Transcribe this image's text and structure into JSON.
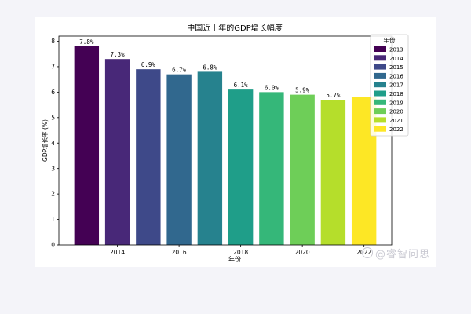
{
  "watermark": "@睿智问思",
  "chart_data": {
    "type": "bar",
    "title": "中国近十年的GDP增长幅度",
    "xlabel": "年份",
    "ylabel": "GDP增长率 (%)",
    "x": [
      2013,
      2014,
      2015,
      2016,
      2017,
      2018,
      2019,
      2020,
      2021,
      2022
    ],
    "values": [
      7.8,
      7.3,
      6.9,
      6.7,
      6.8,
      6.1,
      6.0,
      5.9,
      5.7,
      5.8
    ],
    "data_labels": [
      "7.8%",
      "7.3%",
      "6.9%",
      "6.7%",
      "6.8%",
      "6.1%",
      "6.0%",
      "5.9%",
      "5.7%",
      ""
    ],
    "xticks": [
      2014,
      2016,
      2018,
      2020,
      2022
    ],
    "yticks": [
      0,
      1,
      2,
      3,
      4,
      5,
      6,
      7,
      8
    ],
    "xlim": [
      2012.1,
      2022.9
    ],
    "ylim": [
      0,
      8.2
    ],
    "grid": false,
    "legend": {
      "title": "年份",
      "placement": "top-right",
      "entries": [
        "2013",
        "2014",
        "2015",
        "2016",
        "2017",
        "2018",
        "2019",
        "2020",
        "2021",
        "2022"
      ]
    },
    "colors": [
      "#440154",
      "#482878",
      "#3e4989",
      "#31688e",
      "#26828e",
      "#1f9e89",
      "#35b779",
      "#6ece58",
      "#b5de2b",
      "#fde725"
    ]
  }
}
